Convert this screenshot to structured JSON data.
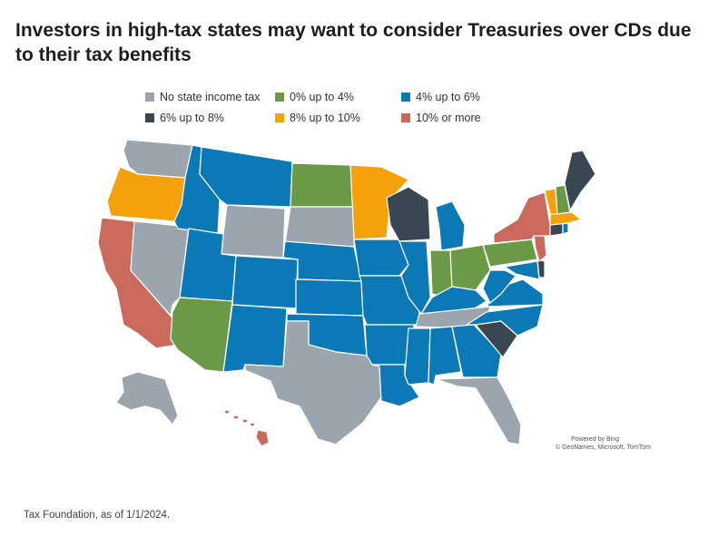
{
  "title": "Investors in high-tax states may want to consider Treasuries over CDs due to their tax benefits",
  "legend": [
    {
      "label": "No state income tax",
      "color": "#9aa5ad"
    },
    {
      "label": "0% up to 4%",
      "color": "#6a9a45"
    },
    {
      "label": "4% up to 6%",
      "color": "#0b79b5"
    },
    {
      "label": "6% up to 8%",
      "color": "#3a4753"
    },
    {
      "label": "8% up to 10%",
      "color": "#f5a20a"
    },
    {
      "label": "10% or more",
      "color": "#c96a5c"
    }
  ],
  "attribution": {
    "line1": "Powered by Bing",
    "line2": "© GeoNames, Microsoft, TomTom"
  },
  "source": "Tax Foundation, as of 1/1/2024.",
  "map_data": {
    "colors": {
      "none": "#9aa5ad",
      "b0_4": "#6a9a45",
      "b4_6": "#0b79b5",
      "b6_8": "#3a4753",
      "b8_10": "#f5a20a",
      "b10": "#c96a5c"
    },
    "states": [
      {
        "name": "WA",
        "bracket": "none"
      },
      {
        "name": "OR",
        "bracket": "b8_10"
      },
      {
        "name": "CA",
        "bracket": "b10"
      },
      {
        "name": "NV",
        "bracket": "none"
      },
      {
        "name": "ID",
        "bracket": "b4_6"
      },
      {
        "name": "MT",
        "bracket": "b4_6"
      },
      {
        "name": "WY",
        "bracket": "none"
      },
      {
        "name": "UT",
        "bracket": "b4_6"
      },
      {
        "name": "AZ",
        "bracket": "b0_4"
      },
      {
        "name": "CO",
        "bracket": "b4_6"
      },
      {
        "name": "NM",
        "bracket": "b4_6"
      },
      {
        "name": "ND",
        "bracket": "b0_4"
      },
      {
        "name": "SD",
        "bracket": "none"
      },
      {
        "name": "NE",
        "bracket": "b4_6"
      },
      {
        "name": "KS",
        "bracket": "b4_6"
      },
      {
        "name": "OK",
        "bracket": "b4_6"
      },
      {
        "name": "TX",
        "bracket": "none"
      },
      {
        "name": "MN",
        "bracket": "b8_10"
      },
      {
        "name": "IA",
        "bracket": "b4_6"
      },
      {
        "name": "MO",
        "bracket": "b4_6"
      },
      {
        "name": "AR",
        "bracket": "b4_6"
      },
      {
        "name": "LA",
        "bracket": "b4_6"
      },
      {
        "name": "WI",
        "bracket": "b6_8"
      },
      {
        "name": "IL",
        "bracket": "b4_6"
      },
      {
        "name": "MI",
        "bracket": "b4_6"
      },
      {
        "name": "IN",
        "bracket": "b0_4"
      },
      {
        "name": "OH",
        "bracket": "b0_4"
      },
      {
        "name": "KY",
        "bracket": "b4_6"
      },
      {
        "name": "TN",
        "bracket": "none"
      },
      {
        "name": "MS",
        "bracket": "b4_6"
      },
      {
        "name": "AL",
        "bracket": "b4_6"
      },
      {
        "name": "GA",
        "bracket": "b4_6"
      },
      {
        "name": "FL",
        "bracket": "none"
      },
      {
        "name": "SC",
        "bracket": "b6_8"
      },
      {
        "name": "NC",
        "bracket": "b4_6"
      },
      {
        "name": "VA",
        "bracket": "b4_6"
      },
      {
        "name": "WV",
        "bracket": "b4_6"
      },
      {
        "name": "PA",
        "bracket": "b0_4"
      },
      {
        "name": "NY",
        "bracket": "b10"
      },
      {
        "name": "NJ",
        "bracket": "b10"
      },
      {
        "name": "DE",
        "bracket": "b6_8"
      },
      {
        "name": "MD",
        "bracket": "b4_6"
      },
      {
        "name": "CT",
        "bracket": "b6_8"
      },
      {
        "name": "RI",
        "bracket": "b4_6"
      },
      {
        "name": "MA",
        "bracket": "b8_10"
      },
      {
        "name": "VT",
        "bracket": "b8_10"
      },
      {
        "name": "NH",
        "bracket": "b0_4"
      },
      {
        "name": "ME",
        "bracket": "b6_8"
      },
      {
        "name": "AK",
        "bracket": "none"
      },
      {
        "name": "HI",
        "bracket": "b10"
      }
    ]
  }
}
